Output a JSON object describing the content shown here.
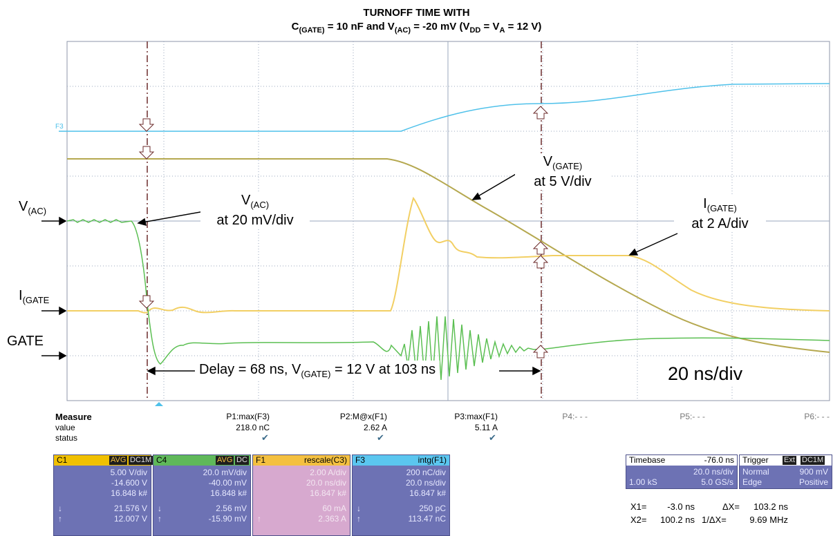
{
  "title": {
    "line1": "TURNOFF TIME WITH",
    "line2_parts": [
      "C",
      "(GATE)",
      " = 10 nF and V",
      "(AC)",
      " = -20 mV (V",
      "DD",
      " = V",
      "A",
      " = 12 V)"
    ]
  },
  "labels": {
    "vac_left_main": "V",
    "vac_left_sub": "(AC)",
    "igate_left_main": "I",
    "igate_left_sub": "(GATE",
    "gate_left": "GATE",
    "vac_callout_main": "V",
    "vac_callout_sub": "(AC)",
    "vac_callout_scale": "at 20 mV/div",
    "vgate_callout_main": "V",
    "vgate_callout_sub": "(GATE)",
    "vgate_callout_scale": "at 5 V/div",
    "igate_callout_main": "I",
    "igate_callout_sub": "(GATE)",
    "igate_callout_scale": "at 2 A/div",
    "delay_part1": "Delay = 68 ns,  V",
    "delay_sub": "(GATE)",
    "delay_part2": " = 12 V at  103 ns",
    "time_div": "20 ns/div",
    "f3_marker": "F3"
  },
  "measure": {
    "header": "Measure",
    "row_labels": [
      "value",
      "status"
    ],
    "params": [
      {
        "name": "P1:max(F3)",
        "value": "218.0 nC",
        "status": "✔"
      },
      {
        "name": "P2:M@x(F1)",
        "value": "2.62 A",
        "status": "✔"
      },
      {
        "name": "P3:max(F1)",
        "value": "5.11 A",
        "status": "✔"
      },
      {
        "name": "P4:- - -",
        "value": "",
        "status": ""
      },
      {
        "name": "P5:- - -",
        "value": "",
        "status": ""
      },
      {
        "name": "P6:- - -",
        "value": "",
        "status": ""
      }
    ]
  },
  "channels": [
    {
      "id": "C1",
      "badge1": "AVG",
      "badge2": "DC1M",
      "color": "#f0c000",
      "rows": [
        "5.00 V/div",
        "-14.600 V",
        "16.848 k#",
        "21.576 V",
        "12.007 V"
      ]
    },
    {
      "id": "C4",
      "badge1": "AVG",
      "badge2": "DC",
      "color": "#5fb85a",
      "rows": [
        "20.0 mV/div",
        "-40.00 mV",
        "16.848 k#",
        "2.56 mV",
        "-15.90 mV"
      ]
    },
    {
      "id": "F1",
      "title": "rescale(C3)",
      "color": "#f4c040",
      "rows": [
        "2.00 A/div",
        "20.0 ns/div",
        "16.847 k#",
        "60 mA",
        "2.363 A"
      ]
    },
    {
      "id": "F3",
      "title": "intg(F1)",
      "color": "#5bc6ef",
      "rows": [
        "200 nC/div",
        "20.0 ns/div",
        "16.847 k#",
        "250 pC",
        "113.47 nC"
      ]
    }
  ],
  "timebase": {
    "label": "Timebase",
    "value": "-76.0 ns",
    "div": "20.0 ns/div",
    "samples": "1.00 kS",
    "rate": "5.0 GS/s"
  },
  "trigger": {
    "label": "Trigger",
    "badge1": "Ext",
    "badge2": "DC1M",
    "mode": "Normal",
    "level": "900 mV",
    "type": "Edge",
    "slope": "Positive"
  },
  "cursors": {
    "x1": "X1=",
    "x1_val": "-3.0 ns",
    "dx": "ΔX=",
    "dx_val": "103.2 ns",
    "x2": "X2=",
    "x2_val": "100.2 ns",
    "inv_dx": "1/ΔX=",
    "inv_dx_val": "9.69 MHz"
  },
  "colors": {
    "grid": "#9aa7bd",
    "f3": "#4fc1ea",
    "vgate": "#b5a84f",
    "igate": "#f2cf63",
    "vac": "#5bbf52",
    "cursor": "#6b2a2a"
  }
}
